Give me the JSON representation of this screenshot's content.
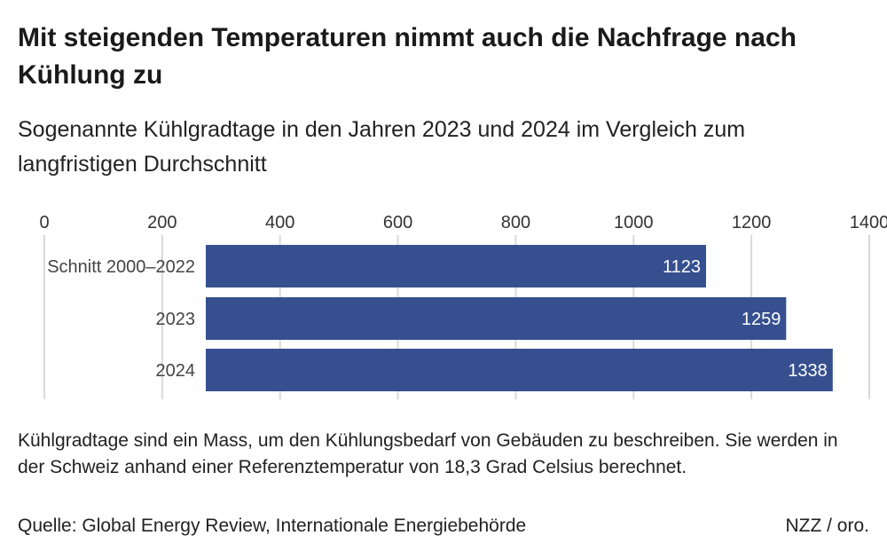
{
  "title": "Mit steigenden Temperaturen nimmt auch die Nachfrage nach Kühlung zu",
  "subtitle": "Sogenannte Kühlgradtage in den Jahren 2023 und 2024 im Vergleich zum langfristigen Durchschnitt",
  "note": "Kühlgradtage sind ein Mass, um den Kühlungsbedarf von Gebäuden zu beschreiben. Sie werden in der Schweiz anhand einer Referenztemperatur von 18,3 Grad Celsius berechnet.",
  "source": "Quelle: Global Energy Review, Internationale Energiebehörde",
  "credit": "NZZ / oro.",
  "chart_data": {
    "type": "bar",
    "orientation": "horizontal",
    "categories": [
      "Schnitt 2000–2022",
      "2023",
      "2024"
    ],
    "values": [
      1123,
      1259,
      1338
    ],
    "xlim": [
      0,
      1400
    ],
    "ticks": [
      0,
      200,
      400,
      600,
      800,
      1000,
      1200,
      1400
    ],
    "tick_position": "top",
    "grid": true,
    "bar_color": "#36508f",
    "grid_color": "#d9d9d9",
    "label_color": "#ffffff"
  }
}
